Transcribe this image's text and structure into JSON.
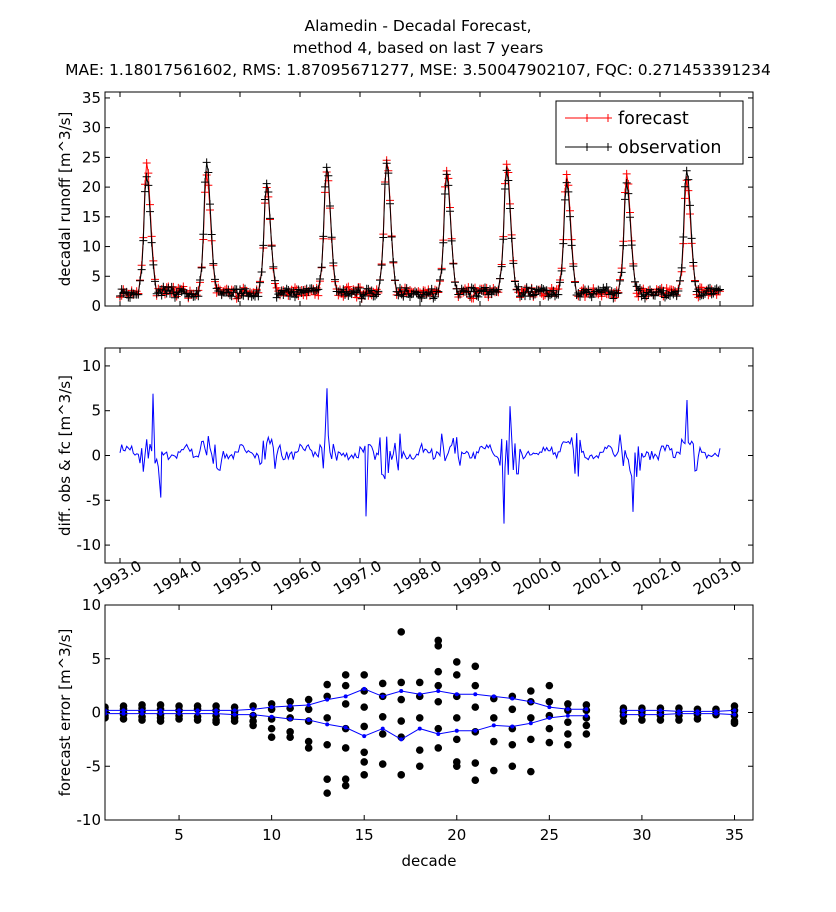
{
  "title": {
    "line1": "Alamedin  - Decadal Forecast,",
    "line2": "method 4, based on last 7 years",
    "line3": "MAE: 1.18017561602,   RMS: 1.87095671277,   MSE: 3.50047902107,   FQC: 0.271453391234"
  },
  "colors": {
    "forecast": "#ff0000",
    "observation": "#000000",
    "diff": "#0000ff",
    "band": "#0000ff"
  },
  "chart_data": [
    {
      "type": "line",
      "ylabel": "decadal runoff [m^3/s]",
      "xlabel": "",
      "xlim": [
        1992.75,
        2003.55
      ],
      "ylim": [
        0,
        36
      ],
      "yticks": [
        0,
        5,
        10,
        15,
        20,
        25,
        30,
        35
      ],
      "legend": {
        "placement": "top-right",
        "entries": [
          "forecast",
          "observation"
        ]
      },
      "x": "decades from 1993.0 to 2003.0 (36 per year)",
      "series": [
        {
          "name": "forecast",
          "marker": "+",
          "color": "#ff0000",
          "yearly_peaks": [
            24,
            22,
            20,
            22.5,
            24.5,
            23,
            24,
            22,
            22,
            21
          ]
        },
        {
          "name": "observation",
          "marker": "+",
          "color": "#000000",
          "yearly_peaks": [
            22,
            24,
            20.5,
            23.5,
            24,
            22,
            23,
            21,
            20.5,
            23
          ]
        }
      ]
    },
    {
      "type": "line",
      "ylabel": "diff. obs & fc [m^3/s]",
      "xlabel": "",
      "xlim": [
        1992.75,
        2003.55
      ],
      "ylim": [
        -12,
        12
      ],
      "yticks": [
        -10,
        -5,
        0,
        5,
        10
      ],
      "xticks": [
        "1993.0",
        "1994.0",
        "1995.0",
        "1996.0",
        "1997.0",
        "1998.0",
        "1999.0",
        "2000.0",
        "2001.0",
        "2002.0",
        "2003.0"
      ],
      "series": [
        {
          "name": "",
          "color": "#0000ff",
          "notable_points": [
            [
              1993.55,
              6.9
            ],
            [
              1993.68,
              -4.7
            ],
            [
              1996.45,
              7.5
            ],
            [
              1997.1,
              -6.8
            ],
            [
              1999.4,
              -7.6
            ],
            [
              1999.5,
              5.5
            ],
            [
              2001.55,
              -6.3
            ],
            [
              2002.45,
              6.2
            ]
          ]
        }
      ]
    },
    {
      "type": "scatter",
      "ylabel": "forecast error [m^3/s]",
      "xlabel": "decade",
      "xlim": [
        1,
        36
      ],
      "ylim": [
        -10,
        10
      ],
      "xticks": [
        5,
        10,
        15,
        20,
        25,
        30,
        35
      ],
      "yticks": [
        -10,
        -5,
        0,
        5,
        10
      ],
      "errors_by_decade": {
        "1": [
          0.5,
          0.2,
          -0.3,
          -0.5,
          0.1
        ],
        "2": [
          0.6,
          0.3,
          -0.2,
          -0.6,
          0.0
        ],
        "3": [
          0.7,
          0.4,
          0.1,
          -0.4,
          -0.7
        ],
        "4": [
          0.7,
          0.3,
          -0.2,
          -0.5,
          -0.8
        ],
        "5": [
          0.6,
          0.2,
          -0.3,
          -0.6
        ],
        "6": [
          0.6,
          0.3,
          -0.4,
          -0.7
        ],
        "7": [
          0.6,
          0.2,
          -0.3,
          -0.7,
          -0.9
        ],
        "8": [
          0.5,
          0.1,
          -0.2,
          -0.5,
          -0.8
        ],
        "9": [
          0.6,
          -0.3,
          -0.8,
          -1.2
        ],
        "10": [
          0.8,
          0.3,
          -0.6,
          -1.5,
          -2.3
        ],
        "11": [
          1.0,
          0.4,
          -0.5,
          -1.8,
          -2.3
        ],
        "12": [
          1.2,
          0.3,
          -0.8,
          -2.7,
          -3.3
        ],
        "13": [
          2.6,
          1.5,
          -0.5,
          -3.0,
          -6.2,
          -7.5
        ],
        "14": [
          3.5,
          2.5,
          0.8,
          -1.5,
          -3.3,
          -6.2,
          -6.8
        ],
        "15": [
          3.5,
          2.0,
          0.5,
          -1.3,
          -3.7,
          -4.6,
          -5.8
        ],
        "16": [
          2.7,
          1.5,
          -0.4,
          -2.0,
          -4.8
        ],
        "17": [
          7.5,
          2.8,
          1.2,
          -0.8,
          -2.3,
          -5.8
        ],
        "18": [
          2.8,
          1.5,
          -0.5,
          -3.5,
          -5.0
        ],
        "19": [
          6.7,
          6.2,
          3.8,
          2.5,
          1.0,
          -1.5,
          -3.3
        ],
        "20": [
          4.7,
          3.5,
          1.5,
          -0.5,
          -2.5,
          -4.6,
          -5.0
        ],
        "21": [
          4.3,
          2.5,
          0.5,
          -1.8,
          -4.7,
          -6.3
        ],
        "22": [
          1.3,
          -0.5,
          -2.7,
          -5.4
        ],
        "23": [
          1.5,
          0.3,
          -1.5,
          -3.0,
          -5.0
        ],
        "24": [
          2.0,
          1.0,
          -0.5,
          -2.5,
          -5.5
        ],
        "25": [
          2.5,
          1.0,
          -0.3,
          -1.5,
          -2.8
        ],
        "26": [
          0.8,
          0.2,
          -0.9,
          -2.0,
          -3.0
        ],
        "27": [
          0.7,
          0.2,
          -0.5,
          -1.2,
          -2.0
        ],
        "29": [
          0.4,
          0.1,
          -0.3,
          -0.8
        ],
        "30": [
          0.4,
          0.1,
          -0.2,
          -0.7
        ],
        "31": [
          0.4,
          0.0,
          -0.3,
          -0.7
        ],
        "32": [
          0.4,
          0.0,
          -0.3,
          -0.7
        ],
        "33": [
          0.3,
          0.0,
          -0.2,
          -0.6
        ],
        "34": [
          0.3,
          0.1,
          -0.2
        ],
        "35": [
          0.6,
          0.2,
          -0.3,
          -0.8,
          -1.0
        ]
      },
      "upper_band": [
        [
          1,
          0.2
        ],
        [
          2,
          0.2
        ],
        [
          3,
          0.2
        ],
        [
          4,
          0.2
        ],
        [
          5,
          0.2
        ],
        [
          6,
          0.2
        ],
        [
          7,
          0.2
        ],
        [
          8,
          0.2
        ],
        [
          9,
          0.3
        ],
        [
          10,
          0.5
        ],
        [
          11,
          0.6
        ],
        [
          12,
          0.7
        ],
        [
          13,
          1.2
        ],
        [
          14,
          1.5
        ],
        [
          15,
          2.2
        ],
        [
          16,
          1.5
        ],
        [
          17,
          2.0
        ],
        [
          18,
          1.7
        ],
        [
          19,
          2.0
        ],
        [
          20,
          1.7
        ],
        [
          21,
          1.7
        ],
        [
          22,
          1.5
        ],
        [
          23,
          1.3
        ],
        [
          24,
          1.0
        ],
        [
          25,
          0.5
        ],
        [
          26,
          0.3
        ],
        [
          27,
          0.3
        ],
        [
          29,
          0.2
        ],
        [
          30,
          0.2
        ],
        [
          31,
          0.2
        ],
        [
          32,
          0.1
        ],
        [
          33,
          0.1
        ],
        [
          34,
          0.1
        ],
        [
          35,
          0.2
        ]
      ],
      "lower_band": [
        [
          1,
          -0.1
        ],
        [
          2,
          -0.1
        ],
        [
          3,
          -0.1
        ],
        [
          4,
          -0.1
        ],
        [
          5,
          -0.1
        ],
        [
          6,
          -0.1
        ],
        [
          7,
          -0.1
        ],
        [
          8,
          -0.2
        ],
        [
          9,
          -0.2
        ],
        [
          10,
          -0.4
        ],
        [
          11,
          -0.6
        ],
        [
          12,
          -0.7
        ],
        [
          13,
          -1.1
        ],
        [
          14,
          -1.4
        ],
        [
          15,
          -2.2
        ],
        [
          16,
          -1.5
        ],
        [
          17,
          -2.5
        ],
        [
          18,
          -1.5
        ],
        [
          19,
          -2.0
        ],
        [
          20,
          -1.7
        ],
        [
          21,
          -1.7
        ],
        [
          22,
          -1.2
        ],
        [
          23,
          -1.3
        ],
        [
          24,
          -1.0
        ],
        [
          25,
          -0.5
        ],
        [
          26,
          -0.3
        ],
        [
          27,
          -0.3
        ],
        [
          29,
          -0.2
        ],
        [
          30,
          -0.2
        ],
        [
          31,
          -0.2
        ],
        [
          32,
          -0.1
        ],
        [
          33,
          -0.1
        ],
        [
          34,
          -0.1
        ],
        [
          35,
          -0.2
        ]
      ]
    }
  ]
}
